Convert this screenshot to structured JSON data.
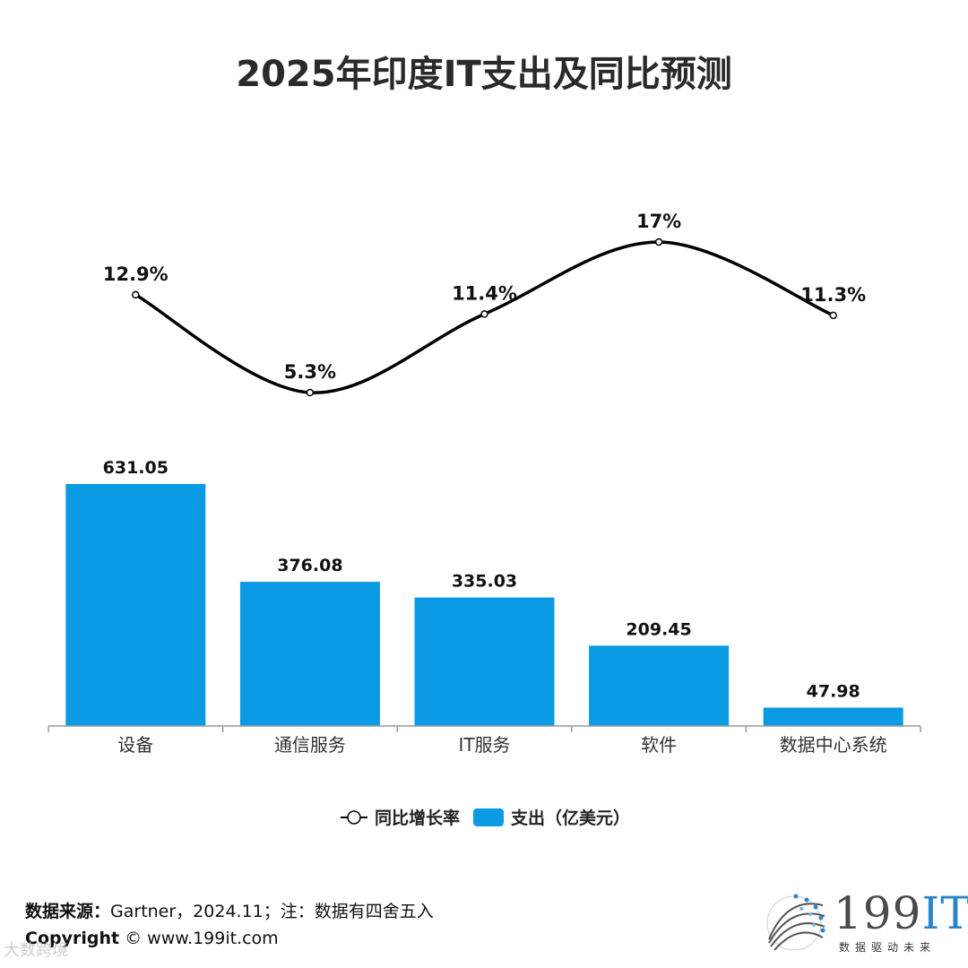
{
  "title": "2025年印度IT支出及同比预测",
  "chart_data": {
    "type": "bar",
    "categories": [
      "设备",
      "通信服务",
      "IT服务",
      "软件",
      "数据中心系统"
    ],
    "series": [
      {
        "name": "支出（亿美元）",
        "kind": "bar",
        "values": [
          631.05,
          376.08,
          335.03,
          209.45,
          47.98
        ],
        "labels": [
          "631.05",
          "376.08",
          "335.03",
          "209.45",
          "47.98"
        ],
        "color": "#0a9be4"
      },
      {
        "name": "同比增长率",
        "kind": "line",
        "values": [
          12.9,
          5.3,
          11.4,
          17,
          11.3
        ],
        "labels": [
          "12.9%",
          "5.3%",
          "11.4%",
          "17%",
          "11.3%"
        ],
        "color": "#000000"
      }
    ],
    "legend": [
      {
        "label": "同比增长率",
        "marker": "line-circle"
      },
      {
        "label": "支出（亿美元）",
        "marker": "bar"
      }
    ],
    "legend_position": "bottom",
    "grid": false
  },
  "footer": {
    "source_label": "数据来源：",
    "source_text": "Gartner，2024.11；注：数据有四舍五入",
    "copyright_label": "Copyright",
    "copyright_text": " © www.199it.com"
  },
  "watermark": "大数跨境",
  "logo": {
    "text_num": "199",
    "text_it": "IT",
    "tagline": "数据驱动未来"
  }
}
